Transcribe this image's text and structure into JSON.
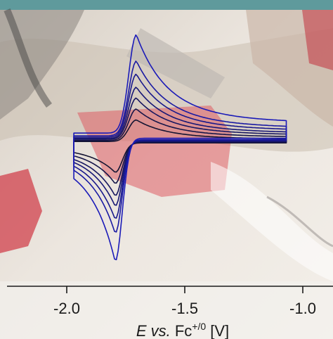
{
  "colors": {
    "top_bar": "#5f9a9c",
    "curve_dark": "#141432",
    "curve_blue": "#1a1ab8",
    "axis": "#1a1a1a",
    "photo_red": "#d9535a",
    "photo_tan": "#cfc4b7"
  },
  "chart_data": {
    "type": "line",
    "title": "",
    "xlabel_parts": {
      "symbol": "E",
      "vs": " vs.",
      "fc": " Fc",
      "superscript": "+/0",
      "unit": " [V]"
    },
    "xticks": [
      -2.0,
      -1.5,
      -1.0
    ],
    "xtick_labels": [
      "-2.0",
      "-1.5",
      "-1.0"
    ],
    "xlim": [
      -2.2,
      -0.9
    ],
    "yaxis_shown": false,
    "grid": false,
    "legend": "none",
    "x_turn_low": -1.97,
    "x_turn_high": -1.07,
    "e_half": -1.75,
    "series": [
      {
        "peak_cathodic": -0.3,
        "peak_anodic": 0.22
      },
      {
        "peak_cathodic": -0.42,
        "peak_anodic": 0.32
      },
      {
        "peak_cathodic": -0.55,
        "peak_anodic": 0.42
      },
      {
        "peak_cathodic": -0.66,
        "peak_anodic": 0.52
      },
      {
        "peak_cathodic": -0.8,
        "peak_anodic": 0.64
      },
      {
        "peak_cathodic": -0.95,
        "peak_anodic": 0.76
      },
      {
        "peak_cathodic": -1.25,
        "peak_anodic": 1.0
      }
    ]
  }
}
